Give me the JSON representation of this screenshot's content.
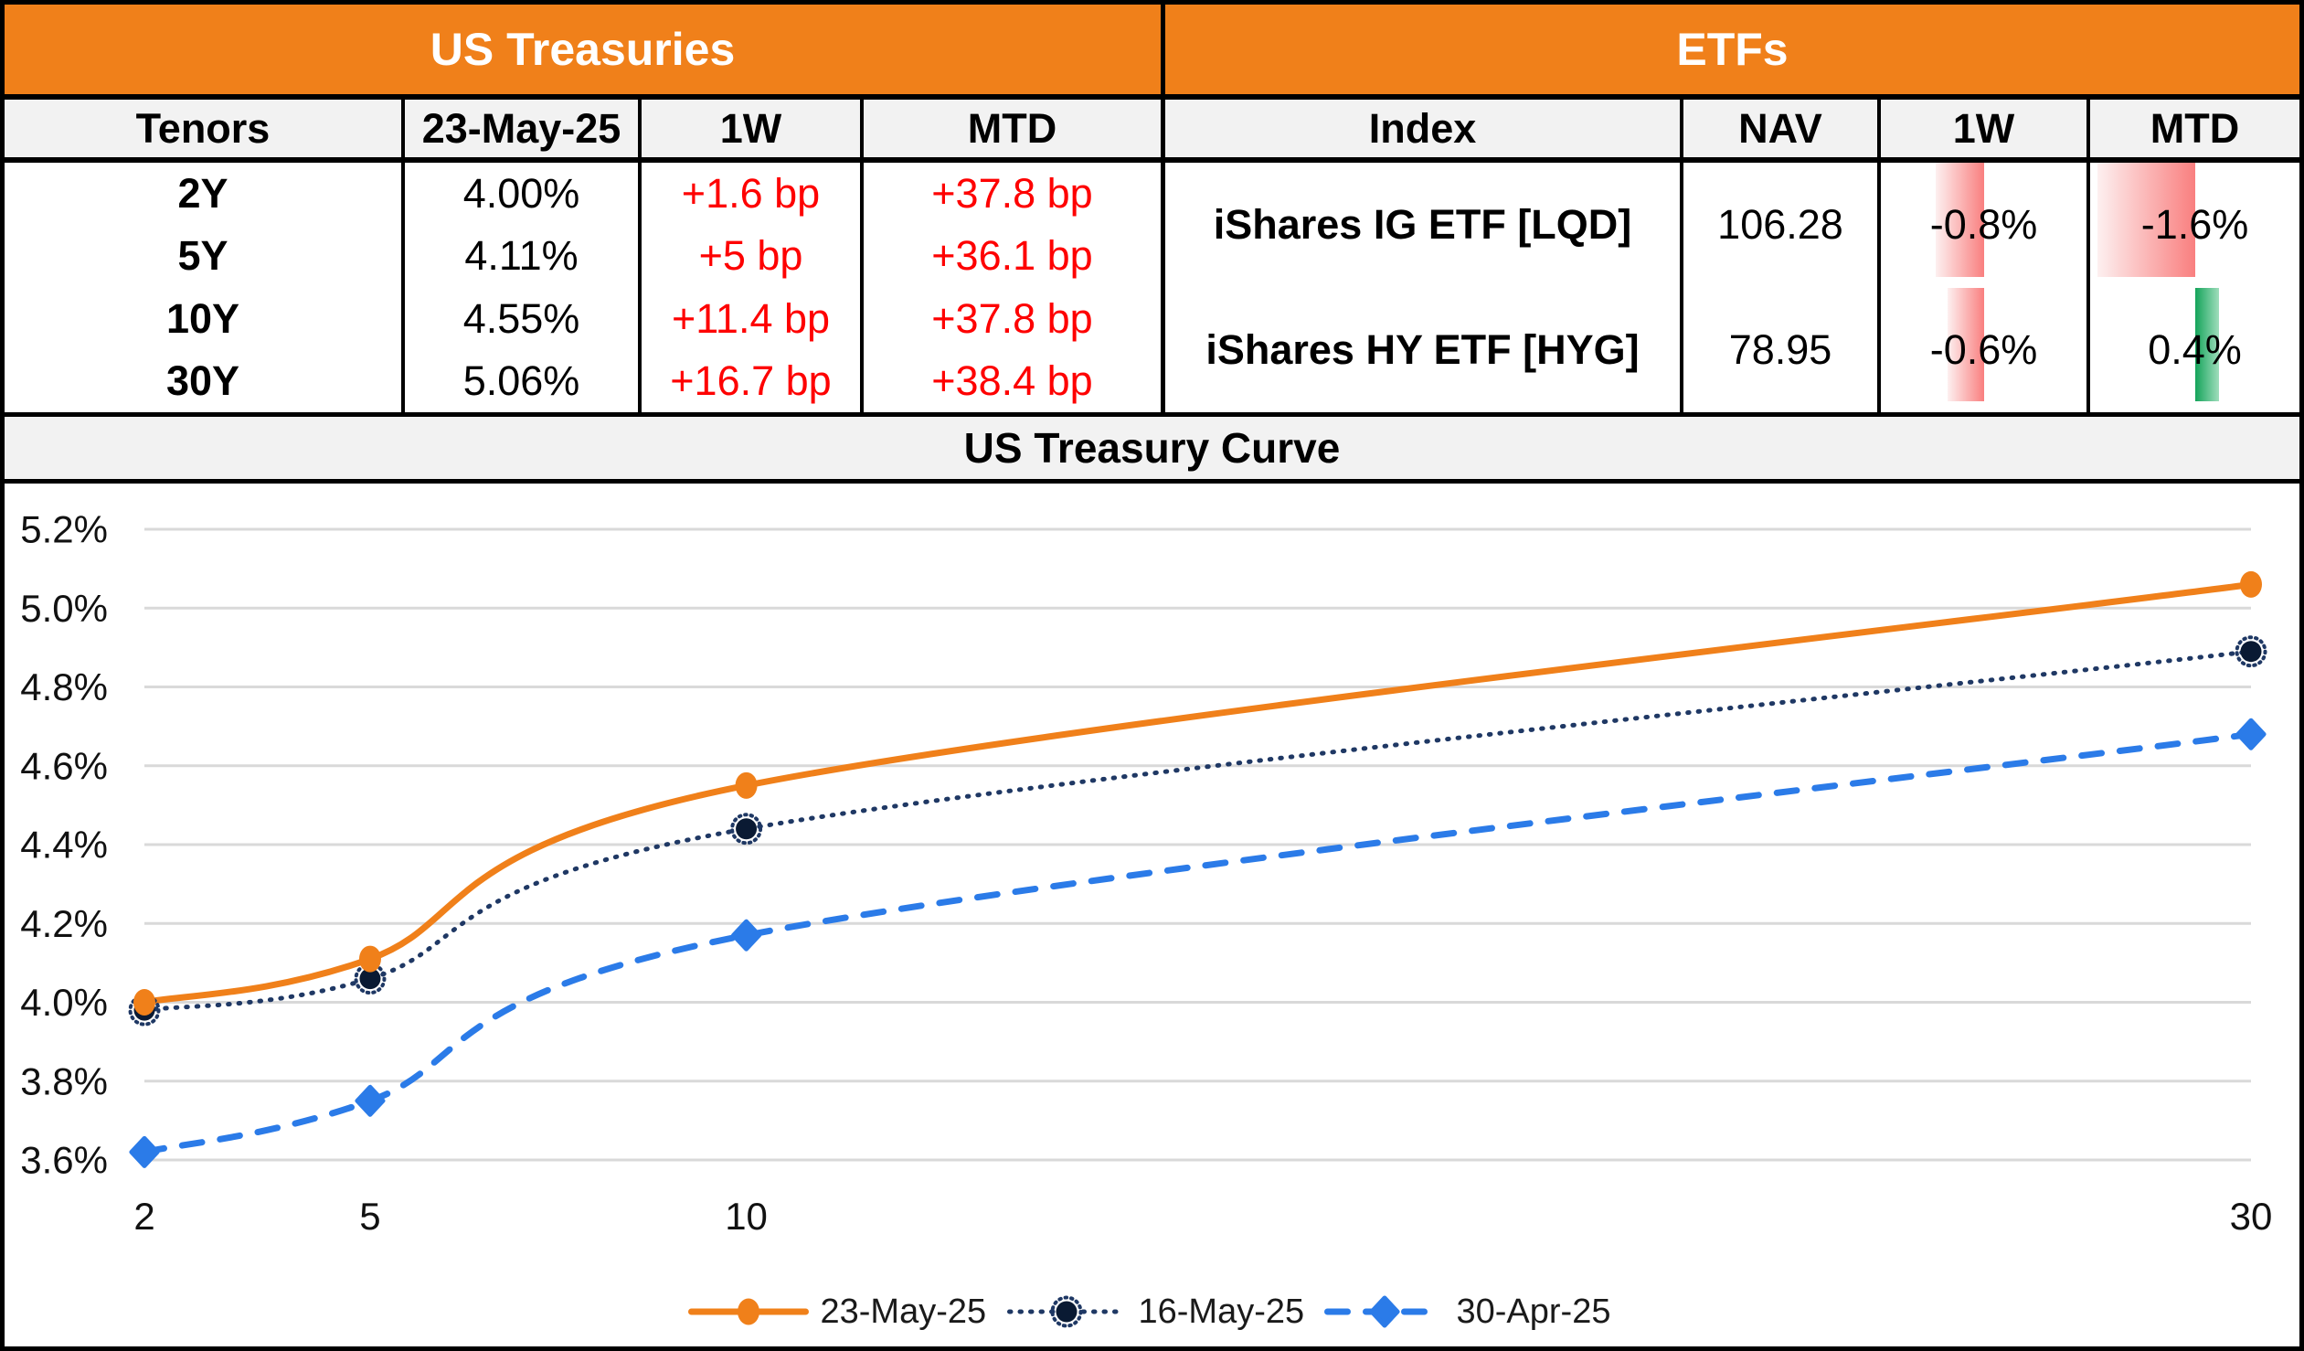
{
  "us_treasuries": {
    "title": "US Treasuries",
    "columns": [
      "Tenors",
      "23-May-25",
      "1W",
      "MTD"
    ],
    "rows": [
      {
        "tenor": "2Y",
        "yield": "4.00%",
        "w1": "+1.6 bp",
        "mtd": "+37.8 bp"
      },
      {
        "tenor": "5Y",
        "yield": "4.11%",
        "w1": "+5 bp",
        "mtd": "+36.1 bp"
      },
      {
        "tenor": "10Y",
        "yield": "4.55%",
        "w1": "+11.4 bp",
        "mtd": "+37.8 bp"
      },
      {
        "tenor": "30Y",
        "yield": "5.06%",
        "w1": "+16.7 bp",
        "mtd": "+38.4 bp"
      }
    ]
  },
  "etfs": {
    "title": "ETFs",
    "columns": [
      "Index",
      "NAV",
      "1W",
      "MTD"
    ],
    "rows": [
      {
        "index": "iShares IG ETF [LQD]",
        "nav": "106.28",
        "w1_label": "-0.8%",
        "w1_value": -0.8,
        "mtd_label": "-1.6%",
        "mtd_value": -1.6
      },
      {
        "index": "iShares HY ETF [HYG]",
        "nav": "78.95",
        "w1_label": "-0.6%",
        "w1_value": -0.6,
        "mtd_label": "0.4%",
        "mtd_value": 0.4
      }
    ],
    "databar_max": 1.6,
    "databar_negative_color": "#F97F7F",
    "databar_negative_fade": "#FDF0F0",
    "databar_positive_color": "#14A45A",
    "databar_positive_fade": "#9FDDBC"
  },
  "chart_title": "US Treasury Curve",
  "chart_data": {
    "type": "line",
    "title": "US Treasury Curve",
    "x": [
      2,
      5,
      10,
      30
    ],
    "x_tick_labels": [
      "2",
      "5",
      "10",
      "30"
    ],
    "series": [
      {
        "name": "23-May-25",
        "values": [
          4.0,
          4.11,
          4.55,
          5.06
        ],
        "color": "#F0801A",
        "style": "solid",
        "marker": "circle"
      },
      {
        "name": "16-May-25",
        "values": [
          3.98,
          4.06,
          4.44,
          4.89
        ],
        "color": "#1F3864",
        "style": "dotted",
        "marker": "dotted-circle",
        "marker_fill": "#0A1A33"
      },
      {
        "name": "30-Apr-25",
        "values": [
          3.62,
          3.75,
          4.17,
          4.68
        ],
        "color": "#2B7BE8",
        "style": "dashed",
        "marker": "diamond"
      }
    ],
    "ylim": [
      3.6,
      5.2
    ],
    "y_tick_step": 0.2,
    "y_tick_format": "percent",
    "xlabel": "",
    "ylabel": "",
    "grid": true,
    "gridline_color": "#D9D9D9",
    "legend_position": "bottom",
    "smooth": true
  },
  "colors": {
    "header_orange": "#F0801A",
    "header_text": "#FFFFFF",
    "subheader_bg": "#F2F2F2",
    "negative_text": "#FE0000",
    "border": "#000000"
  }
}
